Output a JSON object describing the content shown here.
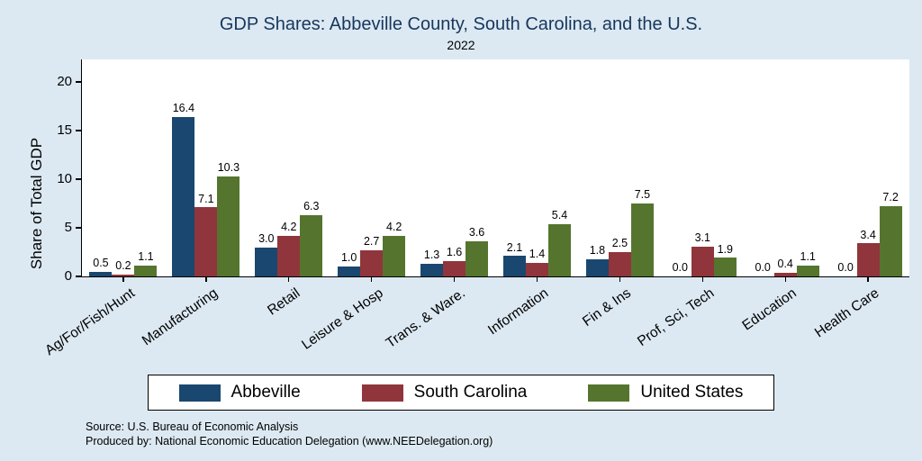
{
  "chart_data": {
    "type": "bar",
    "title": "GDP Shares: Abbeville County, South Carolina, and the U.S.",
    "subtitle": "2022",
    "ylabel": "Share of Total GDP",
    "ylim": [
      0,
      22.4
    ],
    "yticks": [
      0,
      5,
      10,
      15,
      20
    ],
    "grid": false,
    "legend_position": "bottom",
    "categories": [
      "Ag/For/Fish/Hunt",
      "Manufacturing",
      "Retail",
      "Leisure & Hosp",
      "Trans. & Ware.",
      "Information",
      "Fin & Ins",
      "Prof, Sci, Tech",
      "Education",
      "Health Care"
    ],
    "series": [
      {
        "name": "Abbeville",
        "color": "#1a476f",
        "values": [
          0.5,
          16.4,
          3.0,
          1.0,
          1.3,
          2.1,
          1.8,
          0.0,
          0.0,
          0.0
        ]
      },
      {
        "name": "South Carolina",
        "color": "#90353b",
        "values": [
          0.2,
          7.1,
          4.2,
          2.7,
          1.6,
          1.4,
          2.5,
          3.1,
          0.4,
          3.4
        ]
      },
      {
        "name": "United States",
        "color": "#55752f",
        "values": [
          1.1,
          10.3,
          6.3,
          4.2,
          3.6,
          5.4,
          7.5,
          1.9,
          1.1,
          7.2
        ]
      }
    ]
  },
  "footer": {
    "source": "Source: U.S. Bureau of Economic Analysis",
    "produced": "Produced by: National Economic Education Delegation (www.NEEDelegation.org)"
  },
  "colors": {
    "background": "#dce9f2",
    "plot_background": "#ffffff",
    "title": "#17365d"
  }
}
